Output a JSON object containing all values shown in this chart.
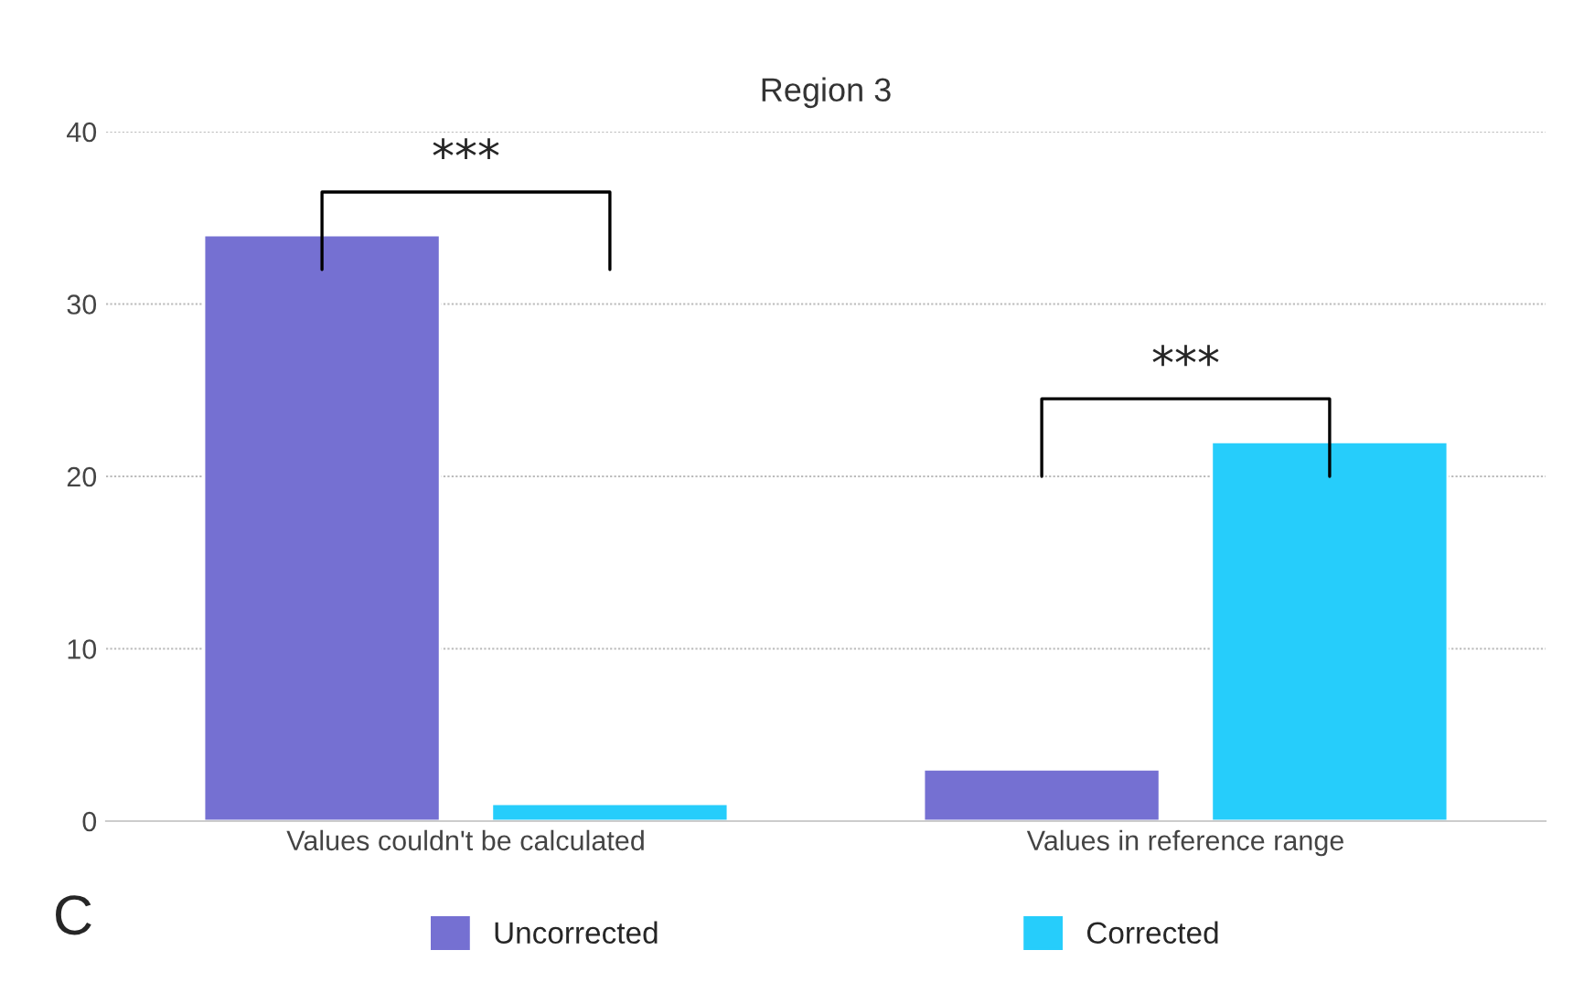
{
  "chart_data": {
    "type": "bar",
    "title": "Region 3",
    "categories": [
      "Values couldn't be calculated",
      "Values in reference range"
    ],
    "series": [
      {
        "name": "Uncorrected",
        "color": "#7570d2",
        "values": [
          34,
          3
        ]
      },
      {
        "name": "Corrected",
        "color": "#26cdfb",
        "values": [
          1,
          22
        ]
      }
    ],
    "ylim": [
      0,
      40
    ],
    "yticks": [
      0,
      10,
      20,
      30,
      40
    ],
    "grid": "y",
    "legend": "bottom",
    "annotations": [
      "***",
      "***",
      "C"
    ]
  }
}
